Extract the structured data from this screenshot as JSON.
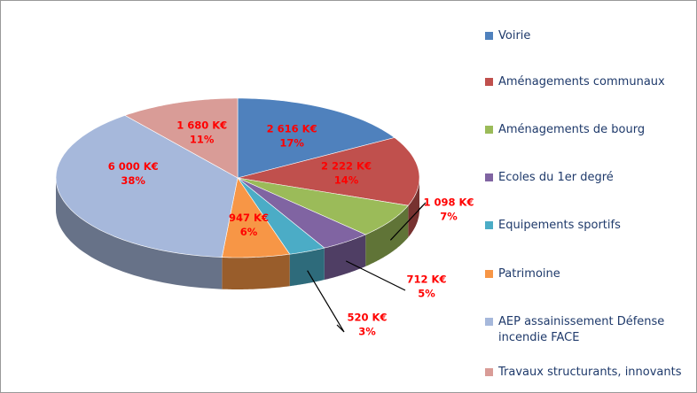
{
  "chart_data": {
    "type": "pie",
    "categories": [
      "Voirie",
      "Aménagements communaux",
      "Aménagements de bourg",
      "Ecoles du 1er degré",
      "Equipements sportifs",
      "Patrimoine",
      "AEP assainissement Défense incendie FACE",
      "Travaux structurants, innovants"
    ],
    "values": [
      2616,
      2222,
      1098,
      712,
      520,
      947,
      6000,
      1680
    ],
    "value_labels": [
      "2 616 K€",
      "2 222 K€",
      "1 098 K€",
      "712 K€",
      "520 K€",
      "947 K€",
      "6 000 K€",
      "1 680 K€"
    ],
    "percentages": [
      17,
      14,
      7,
      5,
      3,
      6,
      38,
      11
    ],
    "percent_labels": [
      "17%",
      "14%",
      "7%",
      "5%",
      "3%",
      "6%",
      "38%",
      "11%"
    ],
    "colors": [
      "#4f81bd",
      "#c0504d",
      "#9bbb59",
      "#8064a2",
      "#4bacc6",
      "#f79646",
      "#a6b8db",
      "#d99c97"
    ],
    "legend": "right"
  }
}
